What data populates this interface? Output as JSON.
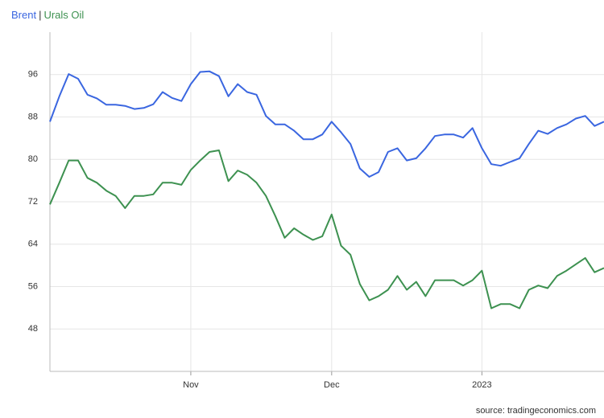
{
  "chart_data": {
    "type": "line",
    "legend_separator": "|",
    "source": "source: tradingeconomics.com",
    "categories": [
      null,
      null,
      null,
      null,
      null,
      null,
      null,
      null,
      null,
      null,
      null,
      null,
      null,
      null,
      null,
      "Nov",
      null,
      null,
      null,
      null,
      null,
      null,
      null,
      null,
      null,
      null,
      null,
      null,
      null,
      null,
      "Dec",
      null,
      null,
      null,
      null,
      null,
      null,
      null,
      null,
      null,
      null,
      null,
      null,
      null,
      null,
      null,
      "2023",
      null,
      null,
      null,
      null,
      null,
      null,
      null,
      null,
      null,
      null,
      null,
      null,
      null
    ],
    "series": [
      {
        "name": "Brent",
        "color": "#3a66e0",
        "values": [
          87.1,
          91.9,
          96.1,
          95.2,
          92.2,
          91.5,
          90.3,
          90.3,
          90.1,
          89.5,
          89.7,
          90.4,
          92.7,
          91.6,
          91.0,
          94.2,
          96.5,
          96.6,
          95.7,
          91.9,
          94.2,
          92.7,
          92.2,
          88.2,
          86.6,
          86.6,
          85.4,
          83.8,
          83.8,
          84.7,
          87.1,
          85.1,
          82.9,
          78.3,
          76.7,
          77.6,
          81.4,
          82.1,
          79.8,
          80.2,
          82.1,
          84.4,
          84.7,
          84.7,
          84.1,
          85.9,
          82.1,
          79.1,
          78.8,
          79.5,
          80.2,
          82.9,
          85.4,
          84.8,
          85.9,
          86.6,
          87.7,
          88.2,
          86.3,
          87.1
        ]
      },
      {
        "name": "Urals Oil",
        "color": "#3d9150",
        "values": [
          71.5,
          75.6,
          79.8,
          79.8,
          76.5,
          75.6,
          74.1,
          73.1,
          70.8,
          73.1,
          73.1,
          73.4,
          75.6,
          75.6,
          75.2,
          78.0,
          79.8,
          81.4,
          81.7,
          75.9,
          77.9,
          77.1,
          75.6,
          73.1,
          69.3,
          65.2,
          67.0,
          65.8,
          64.8,
          65.5,
          69.6,
          63.7,
          62.0,
          56.5,
          53.4,
          54.2,
          55.4,
          58.0,
          55.4,
          56.9,
          54.2,
          57.2,
          57.2,
          57.2,
          56.2,
          57.2,
          59.0,
          51.9,
          52.7,
          52.7,
          51.9,
          55.4,
          56.2,
          55.7,
          58.0,
          59.0,
          60.2,
          61.4,
          58.7,
          59.5
        ]
      }
    ],
    "ylim": [
      40,
      104
    ],
    "yticks": [
      48,
      56,
      64,
      72,
      80,
      88,
      96
    ],
    "grid": true
  }
}
